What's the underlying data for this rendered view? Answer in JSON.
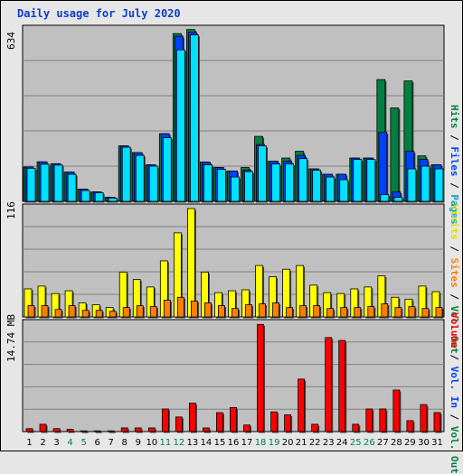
{
  "title": "Daily usage for July 2020",
  "colors": {
    "hits": "#008040",
    "files": "#0040ff",
    "pages": "#00e0ff",
    "visits": "#ffff00",
    "sites": "#ff8000",
    "volume": "#ff0000",
    "grid": "#808080",
    "panel": "#c0c0c0",
    "weekend": "#00805c",
    "weekday": "#000000"
  },
  "chart_data": [
    {
      "type": "bar",
      "title": "Daily usage for July 2020",
      "ylabel": "634",
      "ylim": [
        0,
        634
      ],
      "grid": true,
      "categories": [
        "1",
        "2",
        "3",
        "4",
        "5",
        "6",
        "7",
        "8",
        "9",
        "10",
        "11",
        "12",
        "13",
        "14",
        "15",
        "16",
        "17",
        "18",
        "19",
        "20",
        "21",
        "22",
        "23",
        "24",
        "25",
        "26",
        "27",
        "28",
        "29",
        "30",
        "31"
      ],
      "weekend_days": [
        "4",
        "5",
        "11",
        "12",
        "18",
        "19",
        "25",
        "26"
      ],
      "legend": [
        "Hits",
        "Files",
        "Pages"
      ],
      "series": [
        {
          "name": "Hits",
          "values": [
            127,
            146,
            139,
            108,
            45,
            35,
            15,
            205,
            180,
            135,
            250,
            620,
            635,
            145,
            125,
            112,
            125,
            240,
            148,
            160,
            185,
            120,
            100,
            100,
            160,
            160,
            450,
            345,
            445,
            168,
            135
          ]
        },
        {
          "name": "Files",
          "values": [
            127,
            146,
            139,
            108,
            45,
            35,
            15,
            205,
            180,
            135,
            250,
            610,
            625,
            145,
            125,
            112,
            115,
            210,
            148,
            148,
            170,
            120,
            100,
            100,
            160,
            160,
            255,
            35,
            185,
            155,
            135
          ]
        },
        {
          "name": "Pages",
          "values": [
            122,
            137,
            134,
            100,
            40,
            32,
            12,
            200,
            170,
            130,
            235,
            560,
            615,
            135,
            118,
            90,
            110,
            205,
            138,
            138,
            158,
            115,
            90,
            80,
            155,
            155,
            25,
            15,
            120,
            130,
            120
          ]
        }
      ]
    },
    {
      "type": "bar",
      "ylabel": "116",
      "ylim": [
        0,
        116
      ],
      "grid": true,
      "categories": [
        "1",
        "2",
        "3",
        "4",
        "5",
        "6",
        "7",
        "8",
        "9",
        "10",
        "11",
        "12",
        "13",
        "14",
        "15",
        "16",
        "17",
        "18",
        "19",
        "20",
        "21",
        "22",
        "23",
        "24",
        "25",
        "26",
        "27",
        "28",
        "29",
        "30",
        "31"
      ],
      "legend": [
        "Visits",
        "Sites",
        "Out",
        "Vol. Out"
      ],
      "series": [
        {
          "name": "Visits",
          "values": [
            30,
            33,
            25,
            28,
            15,
            13,
            10,
            48,
            40,
            32,
            60,
            90,
            116,
            48,
            26,
            28,
            29,
            55,
            43,
            51,
            55,
            34,
            26,
            25,
            30,
            32,
            44,
            21,
            19,
            33,
            27
          ]
        },
        {
          "name": "Sites",
          "values": [
            12,
            12,
            8,
            12,
            7,
            7,
            6,
            10,
            12,
            11,
            18,
            21,
            17,
            15,
            12,
            9,
            13,
            14,
            15,
            10,
            12,
            12,
            9,
            10,
            10,
            11,
            14,
            10,
            11,
            9,
            10
          ]
        }
      ]
    },
    {
      "type": "bar",
      "ylabel": "14.74 MB",
      "ylim": [
        0,
        14.74
      ],
      "grid": true,
      "categories": [
        "1",
        "2",
        "3",
        "4",
        "5",
        "6",
        "7",
        "8",
        "9",
        "10",
        "11",
        "12",
        "13",
        "14",
        "15",
        "16",
        "17",
        "18",
        "19",
        "20",
        "21",
        "22",
        "23",
        "24",
        "25",
        "26",
        "27",
        "28",
        "29",
        "30",
        "31"
      ],
      "legend": [
        "Volume",
        "Vol. In"
      ],
      "series": [
        {
          "name": "Volume",
          "values": [
            0.4,
            1.0,
            0.4,
            0.3,
            0.1,
            0.1,
            0.1,
            0.5,
            0.5,
            0.5,
            3.1,
            2.0,
            3.9,
            0.5,
            2.6,
            3.3,
            0.9,
            14.7,
            2.7,
            2.3,
            7.2,
            1.0,
            12.9,
            12.5,
            1.0,
            3.1,
            3.1,
            5.7,
            1.5,
            3.7,
            2.6
          ]
        }
      ]
    }
  ],
  "right_legends": {
    "top": [
      {
        "text": "Hits",
        "color": "#008040"
      },
      {
        "text": " / ",
        "color": "#000000"
      },
      {
        "text": "Files",
        "color": "#0040ff"
      },
      {
        "text": " / ",
        "color": "#000000"
      },
      {
        "text": "Pages",
        "color": "#00a0c0"
      }
    ],
    "middle": [
      {
        "text": "Visits",
        "color": "#e0e000"
      },
      {
        "text": " / ",
        "color": "#000000"
      },
      {
        "text": "Sites",
        "color": "#ff8000"
      },
      {
        "text": " / ",
        "color": "#000000"
      },
      {
        "text": "Vol. Out",
        "color": "#008040"
      }
    ],
    "bottom": [
      {
        "text": "Volume",
        "color": "#ff0000"
      },
      {
        "text": " / ",
        "color": "#000000"
      },
      {
        "text": "Vol. In",
        "color": "#0040ff"
      },
      {
        "text": " / ",
        "color": "#000000"
      },
      {
        "text": "Vol. Out",
        "color": "#008040"
      }
    ]
  }
}
